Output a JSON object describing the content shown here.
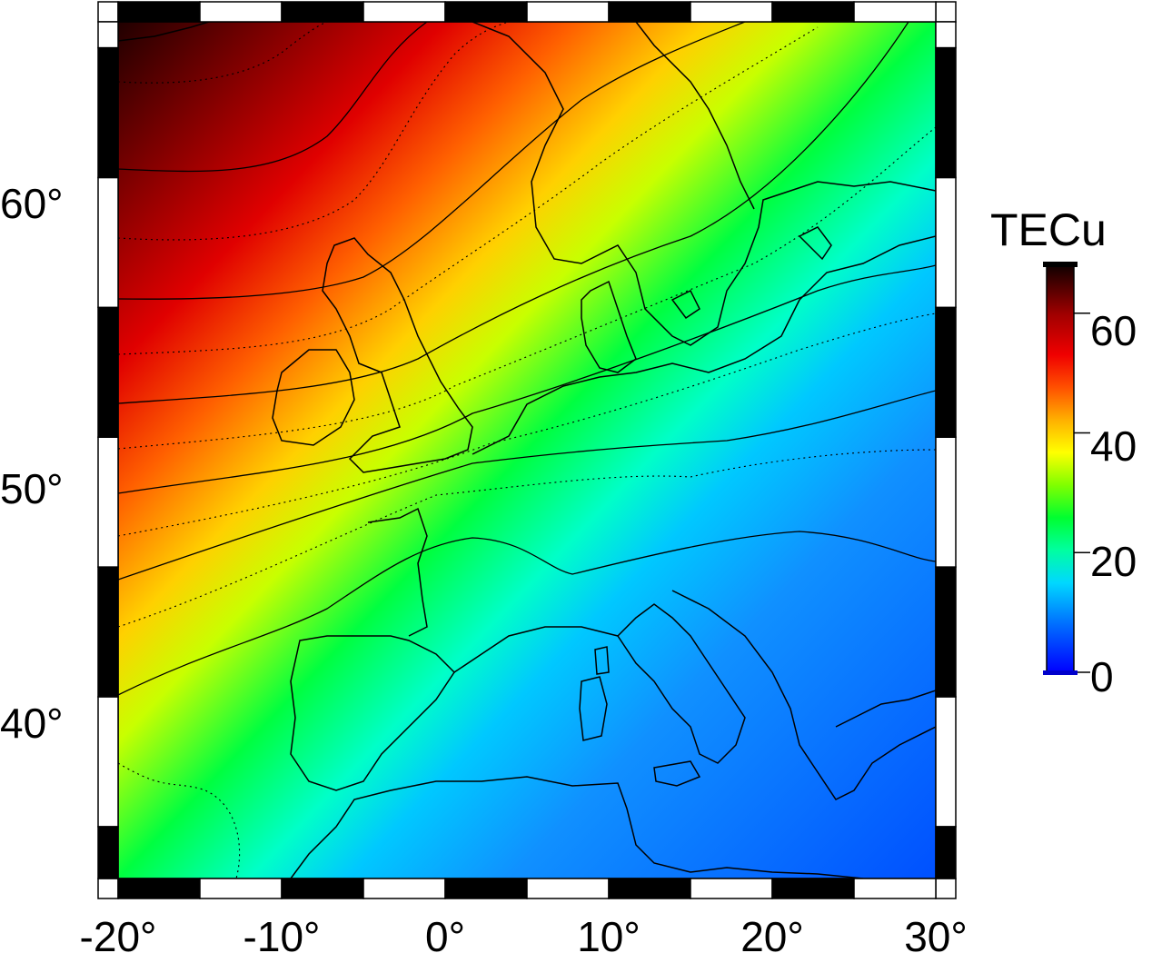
{
  "map": {
    "region": "Europe",
    "projection": "geographic",
    "lon_range": [
      -20,
      30
    ],
    "lat_range": [
      33,
      66
    ],
    "lon_ticks": [
      {
        "value": -20,
        "label": "-20°"
      },
      {
        "value": -10,
        "label": "-10°"
      },
      {
        "value": 0,
        "label": "0°"
      },
      {
        "value": 10,
        "label": "10°"
      },
      {
        "value": 20,
        "label": "20°"
      },
      {
        "value": 30,
        "label": "30°"
      }
    ],
    "lat_ticks": [
      {
        "value": 60,
        "label": "60°"
      },
      {
        "value": 50,
        "label": "50°"
      },
      {
        "value": 40,
        "label": "40°"
      }
    ],
    "field": "Total Electron Content",
    "gradient": "high in the northwest (~65 TECu), decreasing toward the southeast (~8 TECu)"
  },
  "colorbar": {
    "unit": "TECu",
    "range": [
      0,
      68
    ],
    "ticks": [
      {
        "value": 60,
        "label": "60"
      },
      {
        "value": 40,
        "label": "40"
      },
      {
        "value": 20,
        "label": "20"
      },
      {
        "value": 0,
        "label": "0"
      }
    ],
    "colors": [
      "#0000ff",
      "#0070ff",
      "#00d8ff",
      "#00ffc0",
      "#00ff40",
      "#40ff00",
      "#c8ff00",
      "#ffff00",
      "#ffc000",
      "#ff7000",
      "#ff2000",
      "#e00000",
      "#a00000",
      "#600000",
      "#200000"
    ]
  },
  "colors": {
    "frame_dark": "#000000",
    "frame_light": "#ffffff",
    "coastline": "#000000"
  }
}
